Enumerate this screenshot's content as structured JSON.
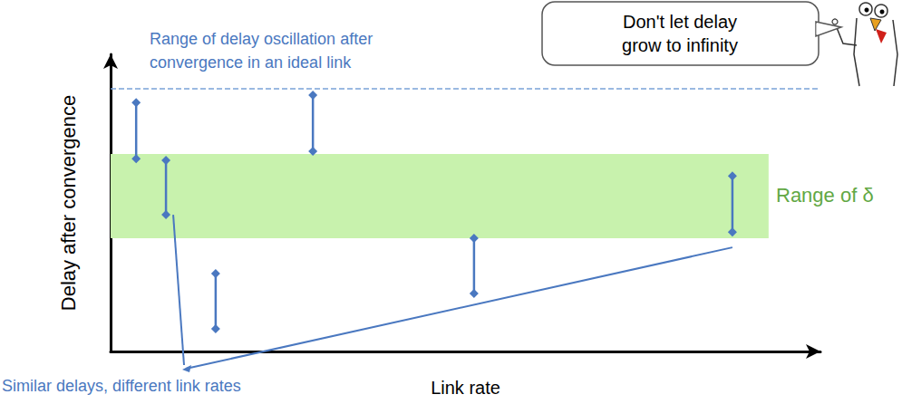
{
  "chart_data": {
    "type": "range",
    "x_label": "Link rate",
    "y_label": "Delay after convergence",
    "xlim": [
      0,
      100
    ],
    "ylim": [
      0,
      100
    ],
    "xticks": [],
    "yticks": [],
    "tick_labels": false,
    "grid": false,
    "color": "#4a78c0",
    "marker": "diamond",
    "x": [
      3.6,
      7.8,
      14.8,
      28.5,
      51.2,
      87.6
    ],
    "low": [
      64.9,
      46.0,
      7.6,
      67.4,
      19.5,
      40.2
    ],
    "high": [
      83.8,
      64.3,
      26.2,
      86.3,
      38.1,
      59.1
    ],
    "band": {
      "label": "Range of δ",
      "low": 38.1,
      "high": 66.5,
      "x_end": 92.7,
      "color": "#c8f2ad"
    },
    "reference_line": {
      "label": "Range of delay oscillation after\nconvergence in an ideal link",
      "y": 88.4,
      "line_style": "dashed",
      "color": "#7aa3d8"
    },
    "annotation": "Similar delays, different link rates",
    "callout": "Don't let delay\ngrow to infinity"
  }
}
